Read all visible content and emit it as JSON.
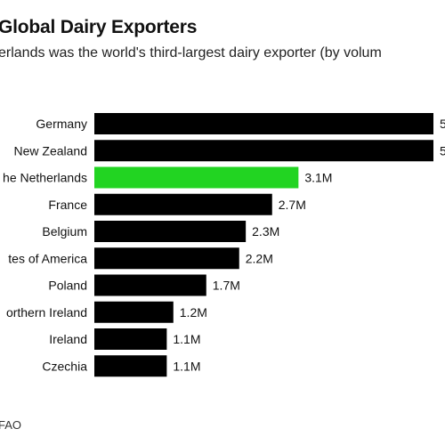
{
  "header": {
    "title": "Global Dairy Exporters",
    "subtitle": "erlands was the world's third-largest dairy exporter (by volum"
  },
  "footer": {
    "source": "FAO"
  },
  "colors": {
    "default_bar": "#000000",
    "highlight_bar": "#22d422",
    "text": "#111111"
  },
  "chart_data": {
    "type": "bar",
    "orientation": "horizontal",
    "categories": [
      "Germany",
      "New Zealand",
      "he Netherlands",
      "France",
      "Belgium",
      "tes of America",
      "Poland",
      "orthern Ireland",
      "Ireland",
      "Czechia"
    ],
    "values": [
      5.15,
      5.15,
      3.1,
      2.7,
      2.3,
      2.2,
      1.7,
      1.2,
      1.1,
      1.1
    ],
    "value_labels": [
      "5",
      "5",
      "3.1M",
      "2.7M",
      "2.3M",
      "2.2M",
      "1.7M",
      "1.2M",
      "1.1M",
      "1.1M"
    ],
    "highlight_index": 2,
    "xlim": [
      0,
      5.15
    ],
    "grid": false,
    "legend": "none"
  }
}
